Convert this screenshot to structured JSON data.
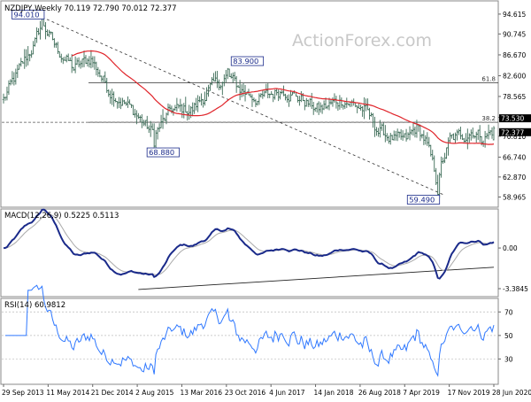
{
  "colors": {
    "price": "#3a6a55",
    "sma": "#e0242a",
    "trend": "#333333",
    "fib": "#333333",
    "box": "#1a2a8a",
    "macd": "#1a2a8a",
    "signal": "#aaaaaa",
    "rsi": "#2f78ff",
    "priceTag": "#000000",
    "watermark": "#c8c8c8"
  },
  "watermark": "ActionForex.com",
  "chart_data": [
    {
      "type": "candlestick",
      "header": "NZDJPY,Weekly  70.119 72.790 70.012 72.377",
      "ylim": [
        57.5,
        96.5
      ],
      "yticks": [
        "94.615",
        "90.745",
        "86.670",
        "82.600",
        "78.565",
        "74.495",
        "70.810",
        "66.740",
        "62.870",
        "58.965"
      ],
      "ytick_values": [
        94.615,
        90.745,
        86.67,
        82.6,
        78.565,
        74.495,
        70.81,
        66.74,
        62.87,
        58.965
      ],
      "price_tags": [
        {
          "label": "73.530",
          "value": 73.53
        },
        {
          "label": "72.377",
          "value": 72.377
        }
      ],
      "fib_lines": [
        {
          "label": "61.8",
          "value": 81.2
        },
        {
          "label": "38.2",
          "value": 73.53
        }
      ],
      "annotations": [
        {
          "label": "94.010",
          "index": 22,
          "value": 94.01
        },
        {
          "label": "83.900",
          "index": 128,
          "value": 83.9
        },
        {
          "label": "68.880",
          "index": 86,
          "value": 68.88
        },
        {
          "label": "59.490",
          "index": 248,
          "value": 59.49
        }
      ],
      "trendline": {
        "from": {
          "index": 22,
          "value": 94.01
        },
        "to": {
          "index": 252,
          "value": 59.3
        }
      },
      "waypoints": [
        [
          0,
          78
        ],
        [
          8,
          83
        ],
        [
          18,
          89
        ],
        [
          22,
          93
        ],
        [
          30,
          88
        ],
        [
          40,
          84
        ],
        [
          50,
          86
        ],
        [
          60,
          80
        ],
        [
          70,
          77
        ],
        [
          76,
          75
        ],
        [
          86,
          71
        ],
        [
          96,
          76
        ],
        [
          108,
          76
        ],
        [
          118,
          80
        ],
        [
          128,
          82.5
        ],
        [
          135,
          80
        ],
        [
          146,
          78
        ],
        [
          160,
          80
        ],
        [
          170,
          78
        ],
        [
          180,
          76
        ],
        [
          194,
          78
        ],
        [
          206,
          76
        ],
        [
          214,
          72
        ],
        [
          224,
          70
        ],
        [
          230,
          70
        ],
        [
          236,
          72.5
        ],
        [
          241,
          70
        ],
        [
          246,
          64
        ],
        [
          248,
          61
        ],
        [
          250,
          65
        ],
        [
          255,
          70
        ],
        [
          262,
          71
        ],
        [
          268,
          72
        ],
        [
          274,
          70.5
        ],
        [
          280,
          72
        ]
      ],
      "candles": [],
      "sma_period": 40
    },
    {
      "type": "line",
      "header": "MACD(12,26,9) 0.5225 0.5113",
      "ylim": [
        -3.9,
        3.1
      ],
      "yticks": [
        "0.00",
        "-3.3845"
      ],
      "ytick_values": [
        0,
        -3.3845
      ],
      "trendline": {
        "from": {
          "index": 77,
          "value": -3.45
        },
        "to": {
          "index": 280,
          "value": -1.6
        }
      },
      "series": [
        {
          "name": "MACD",
          "values": []
        },
        {
          "name": "Signal",
          "values": []
        }
      ]
    },
    {
      "type": "line",
      "header": "RSI(14) 60.9812",
      "ylim": [
        10,
        80
      ],
      "yticks": [
        "70",
        "50",
        "30"
      ],
      "ytick_values": [
        70,
        50,
        30
      ],
      "series": [
        {
          "name": "RSI",
          "values": []
        }
      ]
    }
  ],
  "x_axis": {
    "labels": [
      "29 Sep 2013",
      "11 May 2014",
      "21 Dec 2014",
      "2 Aug 2015",
      "13 Mar 2016",
      "23 Oct 2016",
      "4 Jun 2017",
      "14 Jan 2018",
      "26 Aug 2018",
      "7 Apr 2019",
      "17 Nov 2019",
      "28 Jun 2020"
    ],
    "label_indices": [
      0,
      32,
      64,
      96,
      128,
      160,
      192,
      224,
      256,
      288,
      320,
      352
    ],
    "bar_count": 281
  }
}
